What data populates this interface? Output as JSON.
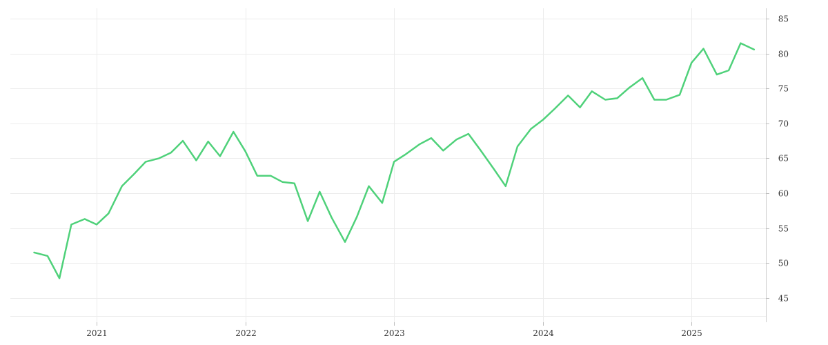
{
  "chart_data": {
    "type": "line",
    "title": "",
    "xlabel": "",
    "ylabel": "",
    "x_ticks": [
      "2021",
      "2022",
      "2023",
      "2024",
      "2025"
    ],
    "x_tick_values": [
      2021.0,
      2022.0,
      2023.0,
      2024.0,
      2025.0
    ],
    "y_ticks": [
      45,
      50,
      55,
      60,
      65,
      70,
      75,
      80,
      85
    ],
    "y_axis_position": "right",
    "xlim": [
      2020.42,
      2025.5
    ],
    "ylim": [
      41.5,
      86.5
    ],
    "grid": true,
    "legend": "none",
    "line_color": "#4fd17a",
    "series": [
      {
        "x": [
          2020.58,
          2020.67,
          2020.75,
          2020.83,
          2020.92,
          2021.0,
          2021.08,
          2021.17,
          2021.25,
          2021.33,
          2021.42,
          2021.5,
          2021.58,
          2021.67,
          2021.75,
          2021.83,
          2021.92,
          2022.0,
          2022.08,
          2022.17,
          2022.25,
          2022.33,
          2022.42,
          2022.5,
          2022.58,
          2022.67,
          2022.75,
          2022.83,
          2022.92,
          2023.0,
          2023.08,
          2023.17,
          2023.25,
          2023.33,
          2023.42,
          2023.5,
          2023.58,
          2023.67,
          2023.75,
          2023.83,
          2023.92,
          2024.0,
          2024.08,
          2024.17,
          2024.25,
          2024.33,
          2024.42,
          2024.5,
          2024.58,
          2024.67,
          2024.75,
          2024.83,
          2024.92,
          2025.0,
          2025.08,
          2025.17,
          2025.25,
          2025.33,
          2025.42
        ],
        "values": [
          51.5,
          51.0,
          47.8,
          55.5,
          56.3,
          55.5,
          57.1,
          61.0,
          62.7,
          64.5,
          65.0,
          65.8,
          67.5,
          64.7,
          67.4,
          65.3,
          68.8,
          66.0,
          62.5,
          62.5,
          61.6,
          61.4,
          56.0,
          60.2,
          56.5,
          53.0,
          56.6,
          61.0,
          58.6,
          64.5,
          65.6,
          67.0,
          67.9,
          66.1,
          67.7,
          68.5,
          66.2,
          63.5,
          61.0,
          66.7,
          69.2,
          70.5,
          72.1,
          74.0,
          72.3,
          74.6,
          73.4,
          73.6,
          75.1,
          76.5,
          73.4,
          73.4,
          74.1,
          78.7,
          80.7,
          77.0,
          77.6,
          81.5,
          80.6
        ]
      }
    ]
  }
}
